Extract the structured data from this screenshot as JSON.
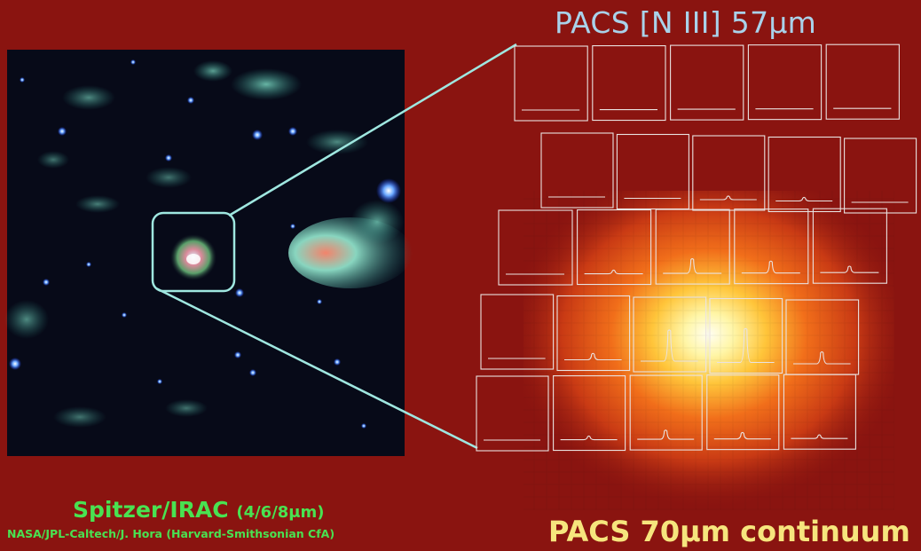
{
  "labels": {
    "pacs_line": "PACS [N III] 57μm",
    "irac_main": "Spitzer/IRAC",
    "irac_bands": "(4/6/8μm)",
    "credit": "NASA/JPL-Caltech/J. Hora (Harvard-Smithsonian CfA)",
    "pacs_continuum": "PACS 70μm continuum"
  },
  "colors": {
    "background": "#8a1410",
    "pacs_line_text": "#a9d2ea",
    "irac_text": "#49e251",
    "continuum_text": "#f6e57d",
    "zoom_lines": "#9fe7e0",
    "spaxel_grid": "#e9e2e0"
  },
  "spaxel_grid": {
    "rows": 5,
    "columns": 5,
    "description_in_picture": false
  },
  "images": {
    "irac_field": "infrared-star-field",
    "continuum_map": "red-yellow-pixel-heatmap"
  }
}
